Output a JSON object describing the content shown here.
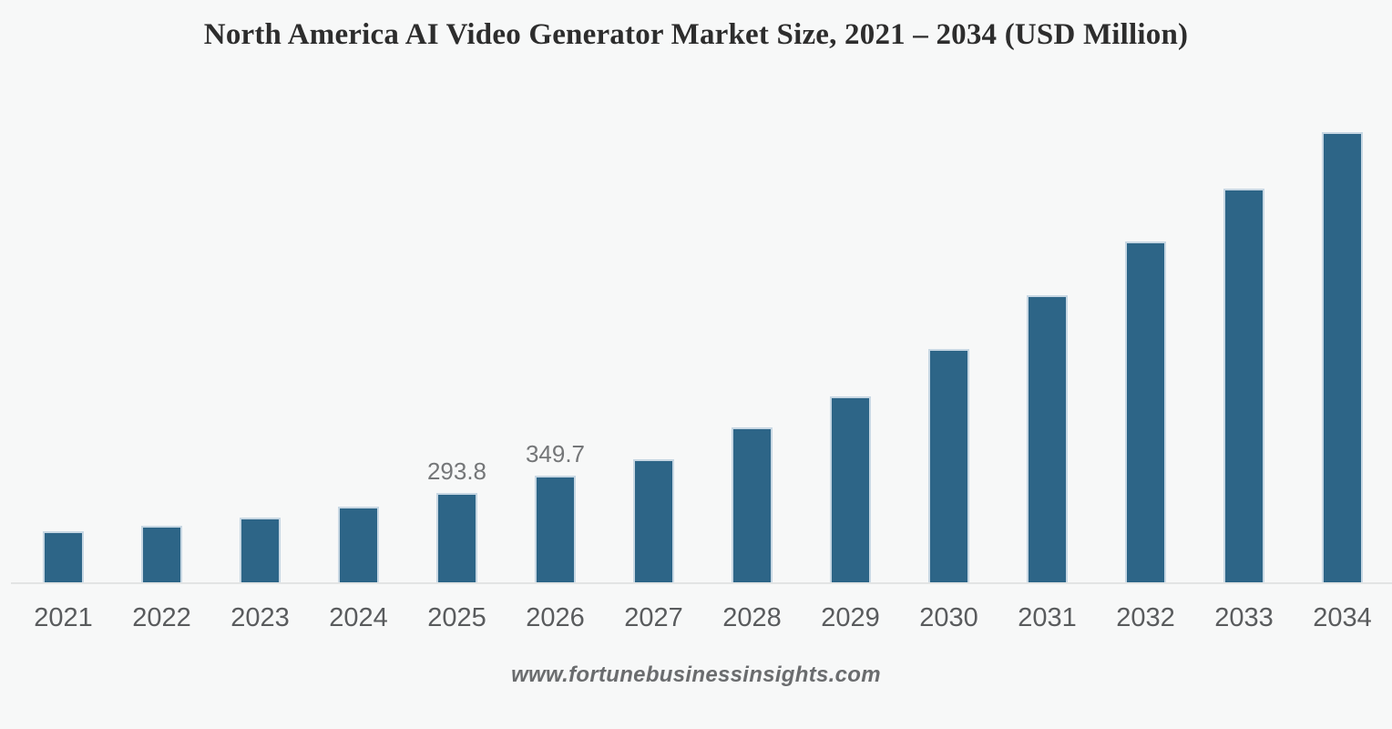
{
  "page": {
    "background_color": "#f7f8f8"
  },
  "title": "North America AI Video Generator Market Size, 2021 – 2034 (USD Million)",
  "footer": "www.fortunebusinessinsights.com",
  "chart_data": {
    "type": "bar",
    "title": "North America AI Video Generator Market Size, 2021 – 2034 (USD Million)",
    "xlabel": "",
    "ylabel": "USD Million",
    "categories": [
      "2021",
      "2022",
      "2023",
      "2024",
      "2025",
      "2026",
      "2027",
      "2028",
      "2029",
      "2030",
      "2031",
      "2032",
      "2033",
      "2034"
    ],
    "values": [
      171,
      189,
      215,
      251,
      293.8,
      349.7,
      405,
      507,
      607,
      760,
      936,
      1110,
      1280,
      1464
    ],
    "point_labels": [
      null,
      null,
      null,
      null,
      "293.8",
      "349.7",
      null,
      null,
      null,
      null,
      null,
      null,
      null,
      null
    ],
    "ylim": [
      0,
      1500
    ],
    "grid": false,
    "legend": "none",
    "note": "Only 2025 and 2026 carry printed data labels; other values estimated from bar heights.",
    "colors": {
      "bar_fill": "#2d6587",
      "bar_edge": "#c7d7e3",
      "value_label": "#747678",
      "tick_label": "#595b5d",
      "axis_line": "#e2e4e4"
    }
  }
}
